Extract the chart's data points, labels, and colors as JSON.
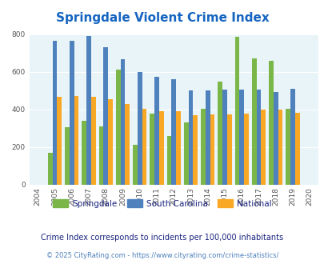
{
  "title": "Springdale Violent Crime Index",
  "years": [
    2004,
    2005,
    2006,
    2007,
    2008,
    2009,
    2010,
    2011,
    2012,
    2013,
    2014,
    2015,
    2016,
    2017,
    2018,
    2019,
    2020
  ],
  "springdale": [
    null,
    170,
    308,
    342,
    310,
    612,
    213,
    378,
    258,
    332,
    403,
    547,
    785,
    672,
    658,
    403,
    null
  ],
  "south_carolina": [
    null,
    765,
    765,
    790,
    730,
    668,
    600,
    575,
    562,
    500,
    500,
    505,
    505,
    505,
    492,
    510,
    null
  ],
  "national": [
    null,
    468,
    472,
    468,
    455,
    430,
    403,
    390,
    390,
    368,
    373,
    375,
    380,
    400,
    398,
    382,
    null
  ],
  "springdale_color": "#7ab648",
  "sc_color": "#4f81bd",
  "national_color": "#f9a825",
  "bg_color": "#e8f4f8",
  "title_color": "#1565c0",
  "subtitle": "Crime Index corresponds to incidents per 100,000 inhabitants",
  "footer": "© 2025 CityRating.com - https://www.cityrating.com/crime-statistics/",
  "subtitle_color": "#1a237e",
  "footer_color": "#4f81bd",
  "ylim": [
    0,
    800
  ],
  "yticks": [
    0,
    200,
    400,
    600,
    800
  ]
}
